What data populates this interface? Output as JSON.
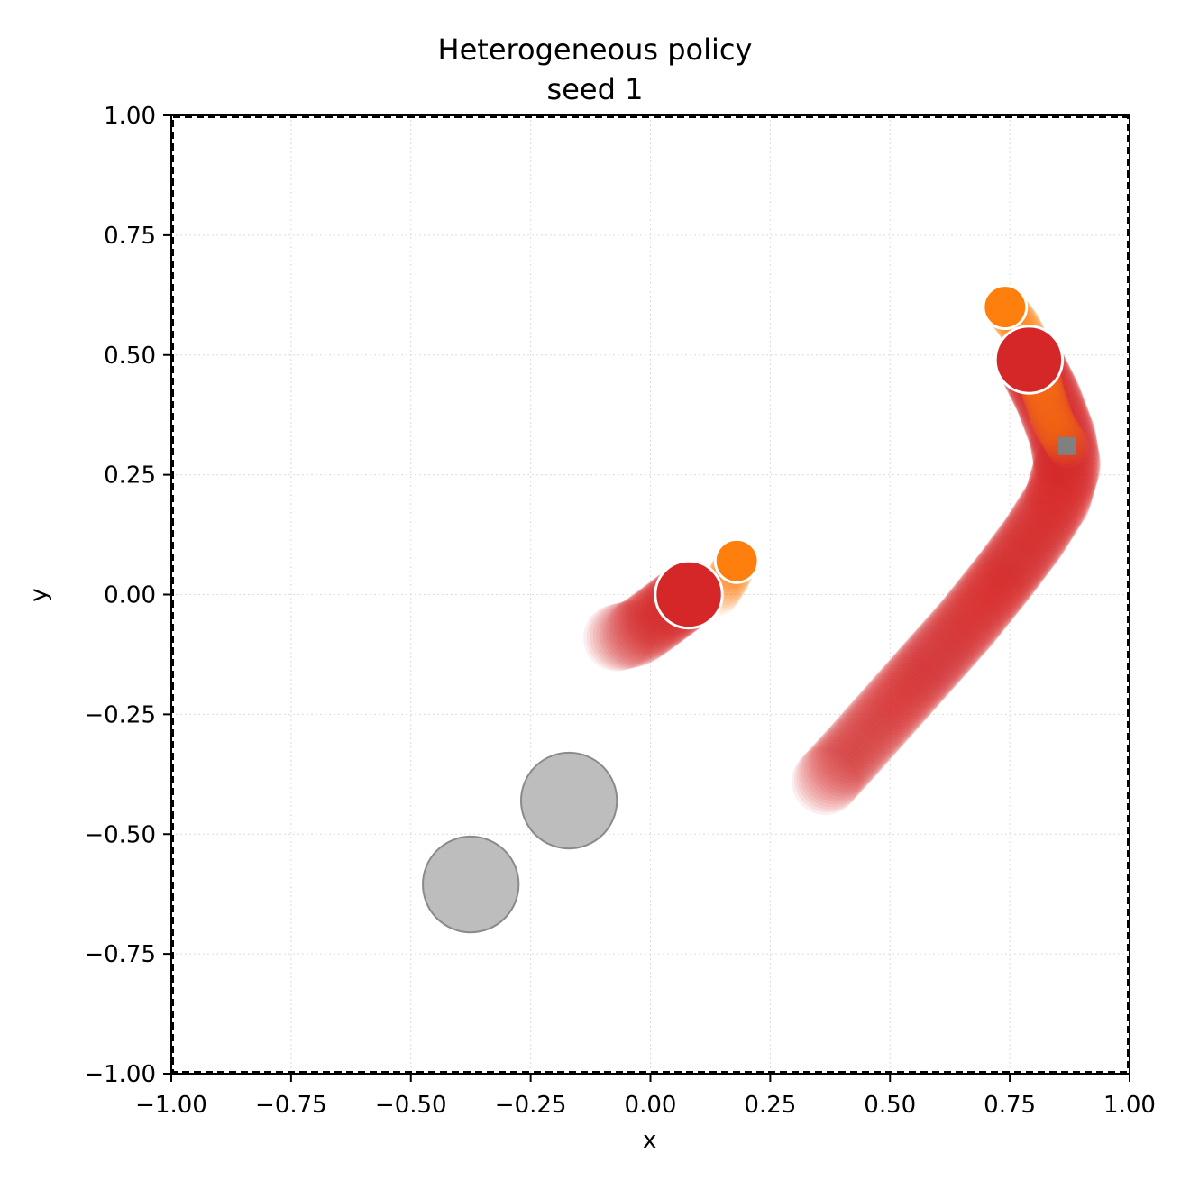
{
  "chart_data": {
    "type": "scatter",
    "title": "Heterogeneous policy",
    "subtitle": "seed 1",
    "xlabel": "x",
    "ylabel": "y",
    "xlim": [
      -1.0,
      1.0
    ],
    "ylim": [
      -1.0,
      1.0
    ],
    "x_ticks": [
      "−1.00",
      "−0.75",
      "−0.50",
      "−0.25",
      "0.00",
      "0.25",
      "0.50",
      "0.75",
      "1.00"
    ],
    "y_ticks": [
      "1.00",
      "0.75",
      "0.50",
      "0.25",
      "0.00",
      "−0.25",
      "−0.50",
      "−0.75",
      "−1.00"
    ],
    "grid": true,
    "arena_boundary": "dashed",
    "colors": {
      "agent_red": "#d62728",
      "agent_orange": "#ff7f0e",
      "obstacle_gray": "#bdbdbd",
      "goal_gray": "#808080"
    },
    "agents": [
      {
        "color": "#d62728",
        "radius": 0.07,
        "trajectory": [
          [
            0.365,
            -0.39
          ],
          [
            0.42,
            -0.33
          ],
          [
            0.5,
            -0.24
          ],
          [
            0.58,
            -0.15
          ],
          [
            0.66,
            -0.06
          ],
          [
            0.74,
            0.04
          ],
          [
            0.8,
            0.12
          ],
          [
            0.85,
            0.2
          ],
          [
            0.87,
            0.27
          ],
          [
            0.86,
            0.33
          ],
          [
            0.83,
            0.41
          ],
          [
            0.79,
            0.49
          ]
        ],
        "final": [
          0.79,
          0.49
        ]
      },
      {
        "color": "#ff7f0e",
        "radius": 0.045,
        "trajectory": [
          [
            0.87,
            0.31
          ],
          [
            0.84,
            0.36
          ],
          [
            0.82,
            0.42
          ],
          [
            0.8,
            0.5
          ],
          [
            0.77,
            0.56
          ],
          [
            0.74,
            0.6
          ]
        ],
        "final": [
          0.74,
          0.6
        ]
      },
      {
        "color": "#d62728",
        "radius": 0.07,
        "trajectory": [
          [
            -0.07,
            -0.09
          ],
          [
            -0.03,
            -0.08
          ],
          [
            0.0,
            -0.06
          ],
          [
            0.04,
            -0.03
          ],
          [
            0.08,
            0.0
          ]
        ],
        "final": [
          0.08,
          0.0
        ]
      },
      {
        "color": "#ff7f0e",
        "radius": 0.045,
        "trajectory": [
          [
            0.14,
            0.0
          ],
          [
            0.16,
            0.03
          ],
          [
            0.18,
            0.07
          ]
        ],
        "final": [
          0.18,
          0.07
        ]
      }
    ],
    "obstacles": [
      {
        "x": -0.17,
        "y": -0.43,
        "r": 0.1
      },
      {
        "x": -0.375,
        "y": -0.605,
        "r": 0.1
      }
    ],
    "goal": {
      "x": 0.87,
      "y": 0.31
    }
  }
}
